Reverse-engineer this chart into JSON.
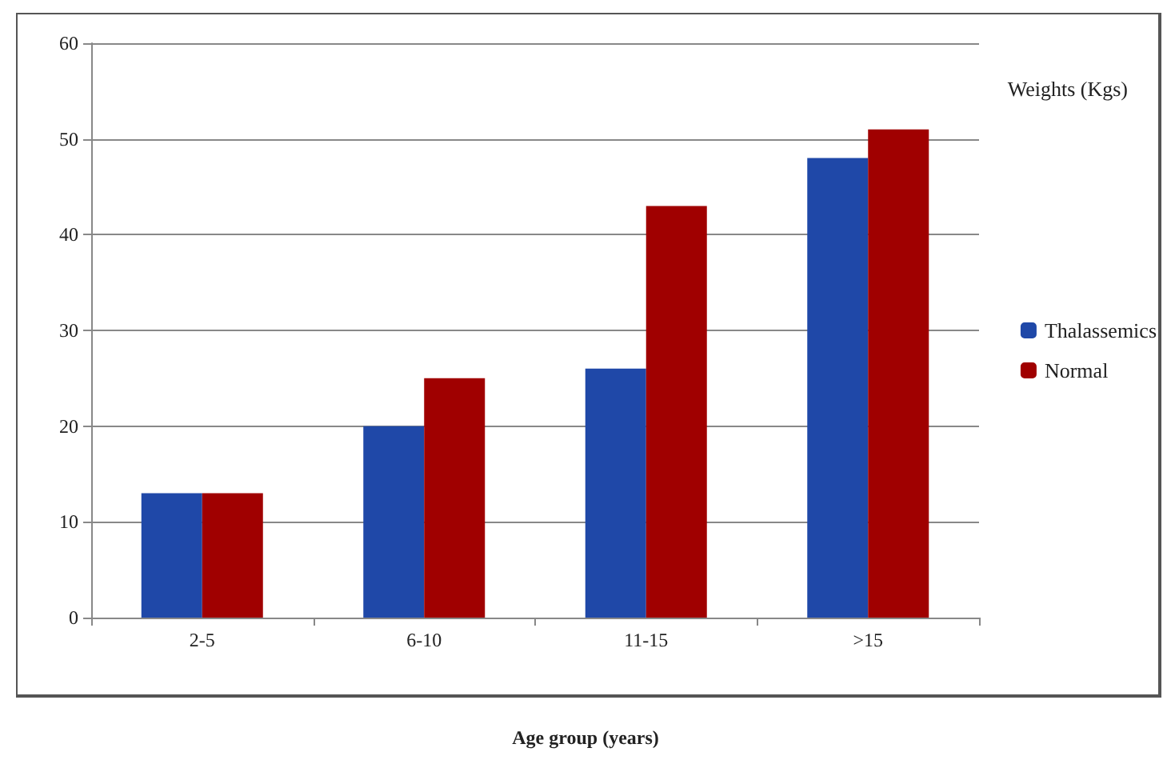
{
  "chart_data": {
    "type": "bar",
    "xlabel": "Age group (years)",
    "ylabel": "Weights (Kgs)",
    "categories": [
      "2-5",
      "6-10",
      "11-15",
      ">15"
    ],
    "series": [
      {
        "name": "Thalassemics",
        "color": "#1f48a8",
        "values": [
          13,
          20,
          26,
          48
        ]
      },
      {
        "name": "Normal",
        "color": "#a00000",
        "values": [
          13,
          25,
          43,
          51
        ]
      }
    ],
    "ylim": [
      0,
      60
    ],
    "yticks": [
      0,
      10,
      20,
      30,
      40,
      50,
      60
    ],
    "grid": "y",
    "legend": "right"
  }
}
